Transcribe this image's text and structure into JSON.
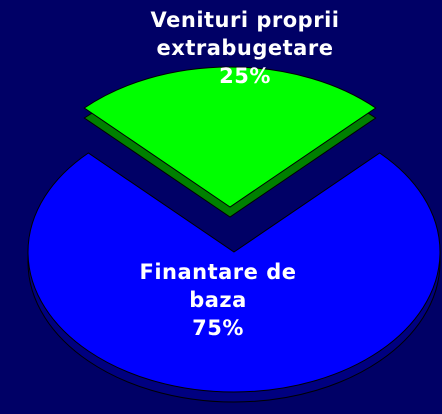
{
  "chart_data": {
    "type": "pie",
    "categories": [
      "Venituri proprii extrabugetare",
      "Finantare de baza"
    ],
    "values": [
      25,
      75
    ],
    "value_labels": [
      "25%",
      "75%"
    ],
    "colors": [
      "#00ff00",
      "#0000ff"
    ]
  }
}
